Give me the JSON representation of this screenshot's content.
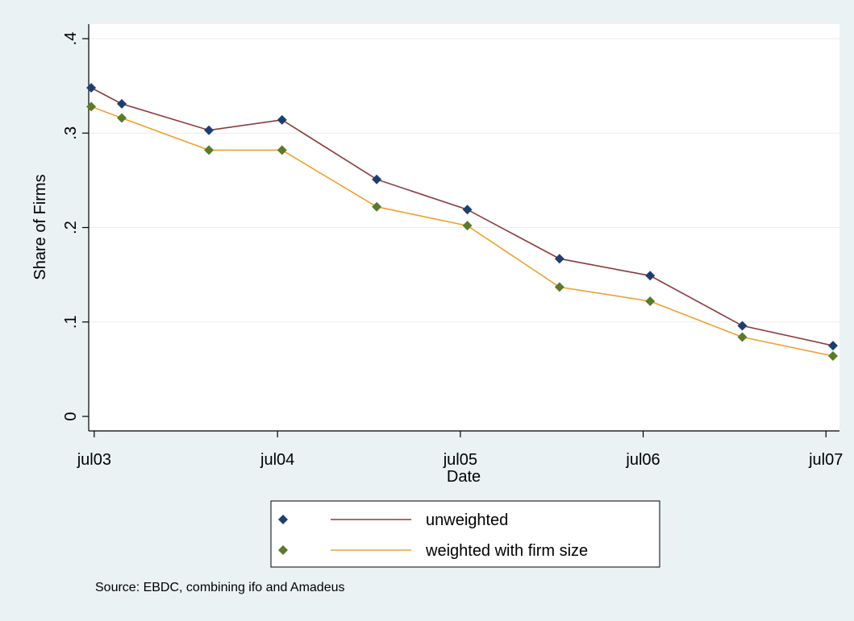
{
  "chart_data": {
    "type": "line",
    "xlabel": "Date",
    "ylabel": "Share of Firms",
    "ylim": [
      0,
      0.4
    ],
    "yticks": [
      {
        "value": 0,
        "label": "0"
      },
      {
        "value": 0.1,
        "label": ".1"
      },
      {
        "value": 0.2,
        "label": ".2"
      },
      {
        "value": 0.3,
        "label": ".3"
      },
      {
        "value": 0.4,
        "label": ".4"
      }
    ],
    "xlim": [
      "2003-06-20",
      "2007-07-28"
    ],
    "xticks": [
      {
        "value": "2003-07-01",
        "label": "jul03"
      },
      {
        "value": "2004-07-01",
        "label": "jul04"
      },
      {
        "value": "2005-07-01",
        "label": "jul05"
      },
      {
        "value": "2006-07-01",
        "label": "jul06"
      },
      {
        "value": "2007-07-01",
        "label": "jul07"
      }
    ],
    "grid": "horizontal",
    "legend_position": "bottom",
    "x": [
      "2003-06-25",
      "2003-08-25",
      "2004-02-15",
      "2004-07-10",
      "2005-01-15",
      "2005-07-15",
      "2006-01-15",
      "2006-07-15",
      "2007-01-15",
      "2007-07-15"
    ],
    "series": [
      {
        "name": "unweighted",
        "line_color": "#8b3a3a",
        "marker_color": "#1e3f6e",
        "values": [
          0.348,
          0.331,
          0.303,
          0.314,
          0.251,
          0.219,
          0.167,
          0.149,
          0.096,
          0.075
        ]
      },
      {
        "name": "weighted with firm size",
        "line_color": "#f0a030",
        "marker_color": "#5b7a2a",
        "values": [
          0.328,
          0.316,
          0.282,
          0.282,
          0.222,
          0.202,
          0.137,
          0.122,
          0.084,
          0.064
        ]
      }
    ],
    "note": "Source: EBDC, combining ifo and Amadeus"
  }
}
